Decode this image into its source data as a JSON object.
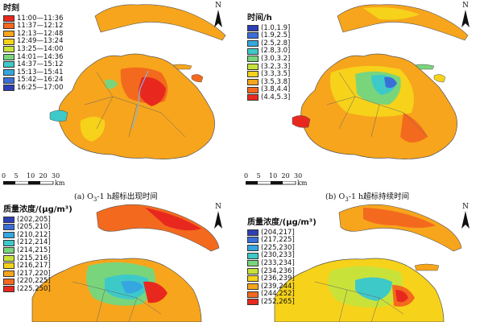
{
  "panels": [
    {
      "id": "a",
      "legend_title": "时刻",
      "classes": [
        "11:00—11:36",
        "11:37—12:12",
        "12:13—12:48",
        "12:49—13:24",
        "13:25—14:00",
        "14:01—14:36",
        "14:37—15:12",
        "15:13—15:41",
        "15:42—16:24",
        "16:25—17:00"
      ],
      "colors": [
        "#e8281e",
        "#f36a1e",
        "#f7a51c",
        "#f6d21a",
        "#c9e23a",
        "#79d57c",
        "#3ec9c9",
        "#35a6e0",
        "#3b6fd8",
        "#2c3fb5"
      ],
      "caption_prefix": "(a) O",
      "caption_sub": "3",
      "caption_suffix": "-1 h超标出现时间"
    },
    {
      "id": "b",
      "legend_title": "时间/h",
      "classes": [
        "(1.0,1.9]",
        "(1.9,2.5]",
        "(2.5,2.8]",
        "(2.8,3.0]",
        "(3.0,3.2]",
        "(3.2,3.3]",
        "(3.3,3.5]",
        "(3.5,3.8]",
        "(3.8,4.4]",
        "(4.4,5.3]"
      ],
      "colors": [
        "#2c3fb5",
        "#3b6fd8",
        "#35a6e0",
        "#3ec9c9",
        "#79d57c",
        "#c9e23a",
        "#f6d21a",
        "#f7a51c",
        "#f36a1e",
        "#e8281e"
      ],
      "caption_prefix": "(b) O",
      "caption_sub": "3",
      "caption_suffix": "-1 h超标持续时间"
    },
    {
      "id": "c",
      "legend_title": "质量浓度/(μg/m³)",
      "classes": [
        "(202,205]",
        "(205,210]",
        "(210,212]",
        "(212,214]",
        "(214,215]",
        "(215,216]",
        "(216,217]",
        "(217,220]",
        "(220,225]",
        "(225,250]"
      ],
      "colors": [
        "#2c3fb5",
        "#3b6fd8",
        "#35a6e0",
        "#3ec9c9",
        "#79d57c",
        "#c9e23a",
        "#f6d21a",
        "#f7a51c",
        "#f36a1e",
        "#e8281e"
      ],
      "caption_prefix": "",
      "caption_sub": "",
      "caption_suffix": ""
    },
    {
      "id": "d",
      "legend_title": "质量浓度/(μg/m³)",
      "classes": [
        "(204,217]",
        "(217,225]",
        "(225,230]",
        "(230,233]",
        "(233,234]",
        "(234,236]",
        "(236,239]",
        "(239,244]",
        "(244,252]",
        "(252,265]"
      ],
      "colors": [
        "#2c3fb5",
        "#3b6fd8",
        "#35a6e0",
        "#3ec9c9",
        "#79d57c",
        "#c9e23a",
        "#f6d21a",
        "#f7a51c",
        "#f36a1e",
        "#e8281e"
      ],
      "caption_prefix": "",
      "caption_sub": "",
      "caption_suffix": ""
    }
  ],
  "north_label": "N",
  "scale": {
    "ticks": [
      "0",
      "5",
      "10",
      "20",
      "30"
    ],
    "unit": "km"
  }
}
